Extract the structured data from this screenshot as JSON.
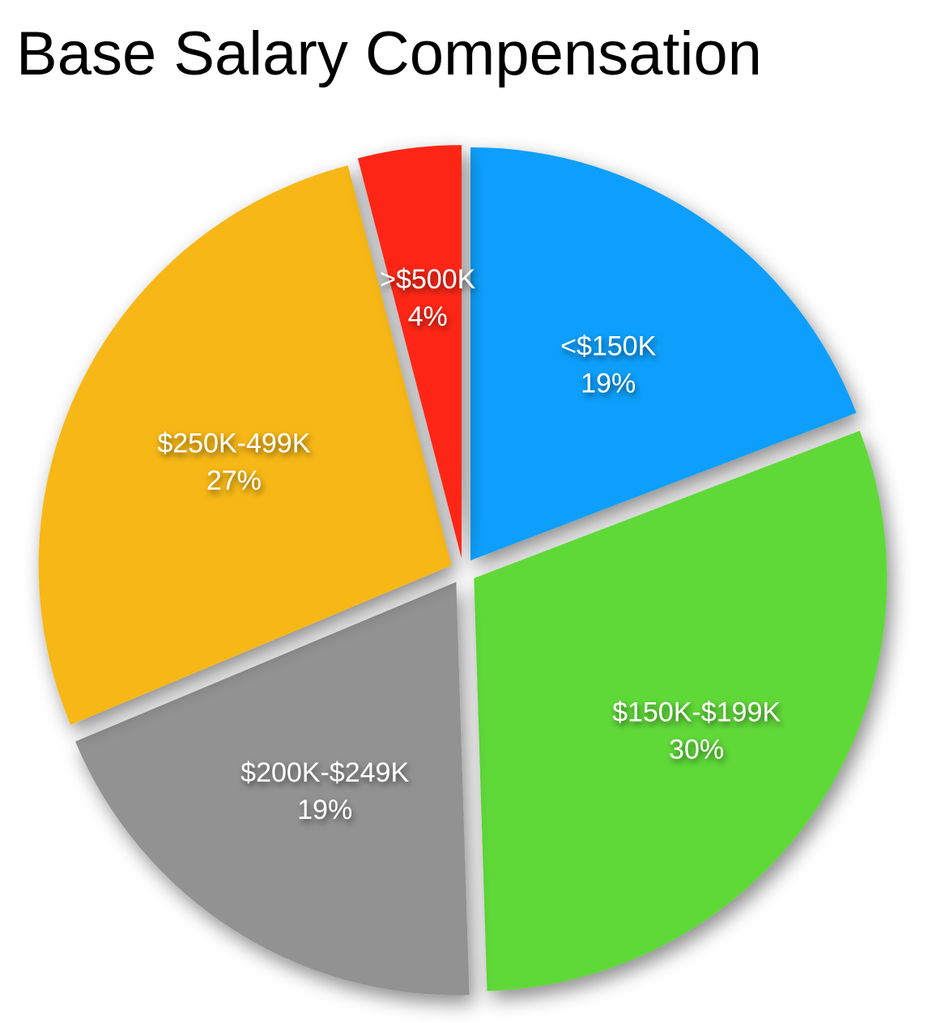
{
  "chart_data": {
    "type": "pie",
    "title": "Base Salary Compensation",
    "exploded": true,
    "start": "12 o'clock, clockwise",
    "slices": [
      {
        "label": "<$150K",
        "value": 19,
        "value_label": "19%",
        "color": "#0a9ffb"
      },
      {
        "label": "$150K-$199K",
        "value": 30,
        "value_label": "30%",
        "color": "#5fd938"
      },
      {
        "label": "$200K-$249K",
        "value": 19,
        "value_label": "19%",
        "color": "#929292"
      },
      {
        "label": "$250K-499K",
        "value": 27,
        "value_label": "27%",
        "color": "#f7b718"
      },
      {
        "label": ">$500K",
        "value": 4,
        "value_label": "4%",
        "color": "#fd2515"
      }
    ]
  }
}
